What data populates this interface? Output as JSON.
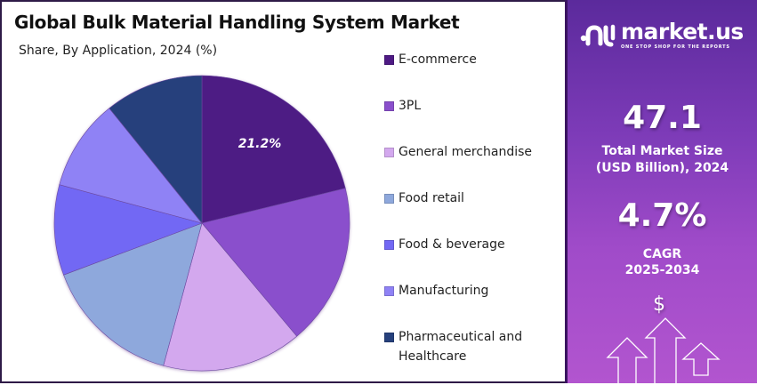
{
  "header": {
    "title": "Global Bulk Material Handling System Market",
    "subtitle": "Share, By Application, 2024 (%)"
  },
  "legend": {
    "items": [
      {
        "label": "E-commerce",
        "color": "#4e1a84"
      },
      {
        "label": "3PL",
        "color": "#8a4fcc"
      },
      {
        "label": "General merchandise",
        "color": "#d3a8ee"
      },
      {
        "label": "Food retail",
        "color": "#8ea8dc"
      },
      {
        "label": "Food & beverage",
        "color": "#7268f4"
      },
      {
        "label": "Manufacturing",
        "color": "#8f82f5"
      },
      {
        "label": "Pharmaceutical and Healthcare",
        "color": "#26407c"
      }
    ]
  },
  "pie_label": "21.2%",
  "panel": {
    "brand_name": "market.us",
    "brand_tagline": "ONE STOP SHOP FOR THE REPORTS",
    "market_size_value": "47.1",
    "market_size_label_line1": "Total Market Size",
    "market_size_label_line2": "(USD Billion), 2024",
    "cagr_value": "4.7%",
    "cagr_label_line1": "CAGR",
    "cagr_label_line2": "2025-2034",
    "dollar_icon": "$"
  },
  "chart_data": {
    "type": "pie",
    "title": "Global Bulk Material Handling System Market",
    "subtitle": "Share, By Application, 2024 (%)",
    "categories": [
      "E-commerce",
      "3PL",
      "General merchandise",
      "Food retail",
      "Food & beverage",
      "Manufacturing",
      "Pharmaceutical and Healthcare"
    ],
    "values": [
      21.2,
      17.7,
      15.3,
      15.1,
      9.9,
      10.0,
      10.8
    ],
    "colors": [
      "#4e1a84",
      "#8a4fcc",
      "#d3a8ee",
      "#8ea8dc",
      "#7268f4",
      "#8f82f5",
      "#26407c"
    ],
    "annotations": [
      "21.2% (E-commerce)"
    ],
    "legend_position": "right",
    "start_angle": "12 o'clock, clockwise"
  }
}
